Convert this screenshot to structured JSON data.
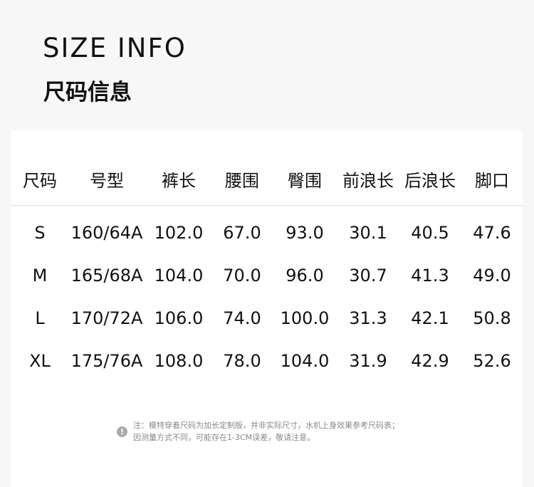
{
  "title_en": "SIZE INFO",
  "title_cn": "尺码信息",
  "headers": [
    "尺码",
    "号型",
    "裤长",
    "腰围",
    "臀围",
    "前浪长",
    "后浪长",
    "脚口"
  ],
  "rows": [
    [
      "S",
      "160/64A",
      "102.0",
      "67.0",
      "93.0",
      "30.1",
      "40.5",
      "47.6"
    ],
    [
      "M",
      "165/68A",
      "104.0",
      "70.0",
      "96.0",
      "30.7",
      "41.3",
      "49.0"
    ],
    [
      "L",
      "170/72A",
      "106.0",
      "74.0",
      "100.0",
      "31.3",
      "42.1",
      "50.8"
    ],
    [
      "XL",
      "175/76A",
      "108.0",
      "78.0",
      "104.0",
      "31.9",
      "42.9",
      "52.6"
    ]
  ],
  "note": {
    "icon": "exclamation-icon",
    "line1": "注：模特穿着尺码为加长定制版，并非实际尺寸，水机上身效果参考尺码表；",
    "line2": "因测量方式不同，可能存在1-3CM误差，敬请注意。"
  }
}
